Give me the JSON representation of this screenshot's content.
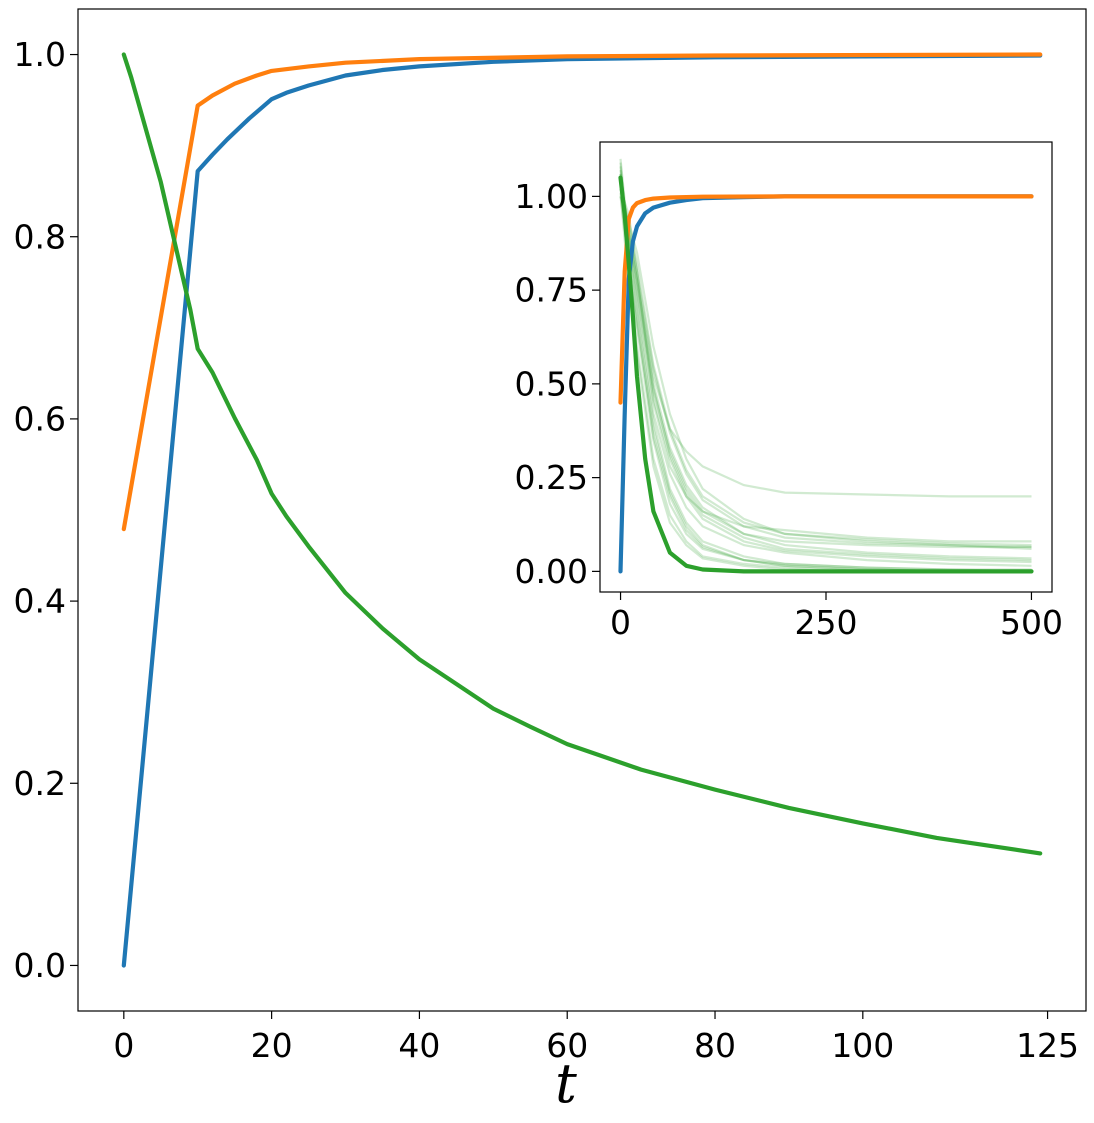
{
  "chart_data": [
    {
      "type": "line",
      "title": "",
      "xlabel": "t",
      "ylabel": "",
      "xlim": [
        -6.2,
        130.2
      ],
      "ylim": [
        -0.05,
        1.05
      ],
      "x_ticks": [
        0,
        20,
        40,
        60,
        80,
        100,
        125
      ],
      "x_tick_labels": [
        "0",
        "20",
        "40",
        "60",
        "80",
        "100",
        "125"
      ],
      "y_ticks": [
        0.0,
        0.2,
        0.4,
        0.6,
        0.8,
        1.0
      ],
      "y_tick_labels": [
        "0.0",
        "0.2",
        "0.4",
        "0.6",
        "0.8",
        "1.0"
      ],
      "grid": false,
      "colors": [
        "#1f77b4",
        "#ff7f0e",
        "#2ca02c"
      ],
      "series": [
        {
          "color": "#1f77b4",
          "x": [
            0,
            10,
            12,
            14,
            17,
            20,
            22,
            25,
            30,
            35,
            40,
            50,
            60,
            80,
            100,
            124
          ],
          "values": [
            0.0,
            0.872,
            0.89,
            0.907,
            0.93,
            0.951,
            0.958,
            0.966,
            0.977,
            0.983,
            0.987,
            0.992,
            0.995,
            0.997,
            0.998,
            0.999
          ]
        },
        {
          "color": "#ff7f0e",
          "x": [
            0,
            10,
            12,
            15,
            18,
            20,
            25,
            30,
            40,
            60,
            80,
            124
          ],
          "values": [
            0.479,
            0.944,
            0.955,
            0.968,
            0.977,
            0.982,
            0.987,
            0.991,
            0.995,
            0.998,
            0.999,
            1.0
          ]
        },
        {
          "color": "#2ca02c",
          "x": [
            0,
            1,
            5,
            7,
            9,
            10,
            12,
            15,
            18,
            20,
            22,
            25,
            30,
            35,
            40,
            45,
            50,
            55,
            60,
            65,
            70,
            80,
            90,
            100,
            110,
            124
          ],
          "values": [
            1.0,
            0.975,
            0.86,
            0.79,
            0.72,
            0.677,
            0.651,
            0.601,
            0.555,
            0.518,
            0.493,
            0.46,
            0.409,
            0.37,
            0.336,
            0.309,
            0.282,
            0.262,
            0.243,
            0.229,
            0.215,
            0.193,
            0.173,
            0.156,
            0.14,
            0.123
          ]
        }
      ]
    },
    {
      "type": "line",
      "title": "",
      "xlabel": "",
      "ylabel": "",
      "xlim": [
        -25,
        525
      ],
      "ylim": [
        -0.055,
        1.145
      ],
      "x_ticks": [
        0,
        250,
        500
      ],
      "x_tick_labels": [
        "0",
        "250",
        "500"
      ],
      "y_ticks": [
        0.0,
        0.25,
        0.5,
        0.75,
        1.0
      ],
      "y_tick_labels": [
        "0.00",
        "0.25",
        "0.50",
        "0.75",
        "1.00"
      ],
      "grid": false,
      "colors": [
        "#1f77b4",
        "#ff7f0e",
        "#2ca02c"
      ],
      "series": [
        {
          "color": "#1f77b4",
          "x": [
            0,
            5,
            10,
            15,
            20,
            30,
            40,
            60,
            80,
            100,
            150,
            200,
            300,
            500
          ],
          "values": [
            0.0,
            0.42,
            0.78,
            0.88,
            0.92,
            0.955,
            0.97,
            0.983,
            0.99,
            0.995,
            0.998,
            1.0,
            1.0,
            1.0
          ]
        },
        {
          "color": "#ff7f0e",
          "x": [
            0,
            5,
            10,
            15,
            20,
            30,
            40,
            60,
            100,
            200,
            500
          ],
          "values": [
            0.45,
            0.8,
            0.94,
            0.97,
            0.982,
            0.99,
            0.994,
            0.997,
            0.999,
            1.0,
            1.0
          ]
        },
        {
          "color": "#2ca02c",
          "x": [
            0,
            5,
            10,
            15,
            20,
            30,
            40,
            60,
            80,
            100,
            150,
            200,
            300,
            400,
            500
          ],
          "values": [
            1.05,
            0.95,
            0.82,
            0.68,
            0.52,
            0.3,
            0.16,
            0.05,
            0.015,
            0.005,
            0.0,
            0.0,
            0.0,
            0.0,
            0.0
          ]
        }
      ],
      "trajectory_series": {
        "color": "#2ca02c",
        "opacity": 0.22,
        "x": [
          0,
          10,
          20,
          40,
          60,
          80,
          100,
          150,
          200,
          300,
          400,
          500
        ],
        "runs": [
          [
            1.02,
            0.95,
            0.8,
            0.45,
            0.28,
            0.2,
            0.16,
            0.12,
            0.11,
            0.09,
            0.08,
            0.08
          ],
          [
            1.05,
            0.9,
            0.78,
            0.52,
            0.38,
            0.32,
            0.28,
            0.23,
            0.21,
            0.205,
            0.2,
            0.2
          ],
          [
            1.08,
            0.85,
            0.7,
            0.4,
            0.22,
            0.13,
            0.08,
            0.04,
            0.02,
            0.01,
            0.005,
            0.0
          ],
          [
            1.1,
            0.88,
            0.75,
            0.48,
            0.32,
            0.22,
            0.16,
            0.1,
            0.08,
            0.07,
            0.065,
            0.065
          ],
          [
            1.0,
            0.82,
            0.65,
            0.35,
            0.18,
            0.1,
            0.06,
            0.03,
            0.02,
            0.01,
            0.005,
            0.005
          ],
          [
            1.04,
            0.92,
            0.82,
            0.55,
            0.38,
            0.27,
            0.2,
            0.13,
            0.1,
            0.085,
            0.075,
            0.07
          ],
          [
            1.06,
            0.78,
            0.6,
            0.3,
            0.15,
            0.08,
            0.04,
            0.02,
            0.01,
            0.0,
            0.0,
            0.0
          ],
          [
            1.03,
            0.9,
            0.78,
            0.5,
            0.33,
            0.23,
            0.17,
            0.1,
            0.07,
            0.05,
            0.04,
            0.035
          ],
          [
            1.07,
            0.86,
            0.72,
            0.42,
            0.26,
            0.17,
            0.12,
            0.07,
            0.05,
            0.03,
            0.02,
            0.015
          ],
          [
            1.0,
            0.93,
            0.85,
            0.6,
            0.42,
            0.3,
            0.22,
            0.14,
            0.1,
            0.08,
            0.07,
            0.06
          ],
          [
            1.05,
            0.8,
            0.66,
            0.38,
            0.21,
            0.12,
            0.07,
            0.03,
            0.015,
            0.005,
            0.0,
            0.0
          ],
          [
            1.02,
            0.87,
            0.74,
            0.46,
            0.3,
            0.2,
            0.14,
            0.08,
            0.055,
            0.04,
            0.03,
            0.025
          ],
          [
            1.09,
            0.83,
            0.68,
            0.36,
            0.2,
            0.11,
            0.065,
            0.03,
            0.015,
            0.005,
            0.0,
            0.0
          ],
          [
            1.04,
            0.91,
            0.8,
            0.54,
            0.37,
            0.26,
            0.19,
            0.12,
            0.09,
            0.075,
            0.07,
            0.065
          ],
          [
            1.01,
            0.76,
            0.58,
            0.28,
            0.13,
            0.07,
            0.035,
            0.015,
            0.005,
            0.0,
            0.0,
            0.0
          ],
          [
            1.06,
            0.89,
            0.77,
            0.49,
            0.31,
            0.21,
            0.15,
            0.09,
            0.06,
            0.045,
            0.035,
            0.03
          ]
        ]
      }
    }
  ]
}
